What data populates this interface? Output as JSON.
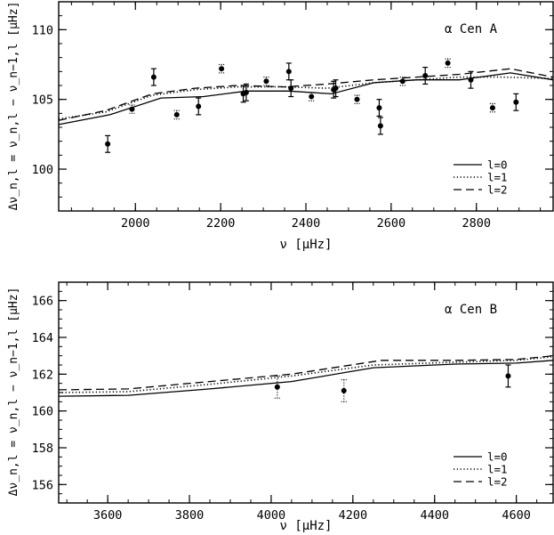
{
  "chart_data": [
    {
      "type": "line",
      "label": "α Cen A",
      "xlabel": "ν [μHz]",
      "ylabel": "Δν_n,l = ν_n,l − ν_n−1,l [μHz]",
      "xlim": [
        1820,
        2980
      ],
      "ylim": [
        97,
        112
      ],
      "xticks": [
        2000,
        2200,
        2400,
        2600,
        2800
      ],
      "yticks": [
        100,
        105,
        110
      ],
      "xminor": 50,
      "yminor": 1,
      "legend": {
        "position": "bottom-right",
        "entries": [
          "l=0",
          "l=1",
          "l=2"
        ]
      },
      "series": [
        {
          "name": "l=0",
          "style": "solid",
          "x": [
            1820,
            1940,
            2060,
            2160,
            2260,
            2360,
            2460,
            2560,
            2660,
            2760,
            2880,
            2980
          ],
          "y": [
            103.2,
            103.9,
            105.1,
            105.2,
            105.6,
            105.6,
            105.4,
            106.2,
            106.4,
            106.4,
            106.9,
            106.4
          ]
        },
        {
          "name": "l=1",
          "style": "dotted",
          "x": [
            1820,
            1930,
            2040,
            2140,
            2240,
            2350,
            2450,
            2560,
            2660,
            2760,
            2860,
            2980
          ],
          "y": [
            103.6,
            104.1,
            105.3,
            105.7,
            105.9,
            105.9,
            105.8,
            106.2,
            106.4,
            106.6,
            106.6,
            106.5
          ]
        },
        {
          "name": "l=2",
          "style": "dashed",
          "x": [
            1820,
            1930,
            2040,
            2140,
            2240,
            2350,
            2450,
            2560,
            2660,
            2760,
            2880,
            2980
          ],
          "y": [
            103.5,
            104.2,
            105.4,
            105.8,
            106.0,
            105.9,
            106.1,
            106.4,
            106.6,
            106.8,
            107.2,
            106.6
          ]
        }
      ],
      "observations": [
        {
          "l": 0,
          "x": 1935,
          "y": 101.8,
          "err": 0.6
        },
        {
          "l": 0,
          "x": 2043,
          "y": 106.6,
          "err": 0.6
        },
        {
          "l": 0,
          "x": 2148,
          "y": 104.5,
          "err": 0.6
        },
        {
          "l": 0,
          "x": 2253,
          "y": 105.4,
          "err": 0.6
        },
        {
          "l": 0,
          "x": 2360,
          "y": 107.0,
          "err": 0.6
        },
        {
          "l": 0,
          "x": 2465,
          "y": 105.7,
          "err": 0.6
        },
        {
          "l": 0,
          "x": 2572,
          "y": 104.4,
          "err": 0.6
        },
        {
          "l": 0,
          "x": 2680,
          "y": 106.7,
          "err": 0.6
        },
        {
          "l": 0,
          "x": 2787,
          "y": 106.4,
          "err": 0.6
        },
        {
          "l": 0,
          "x": 2893,
          "y": 104.8,
          "err": 0.6
        },
        {
          "l": 1,
          "x": 1992,
          "y": 104.3,
          "err": 0.3
        },
        {
          "l": 1,
          "x": 2097,
          "y": 103.9,
          "err": 0.3
        },
        {
          "l": 1,
          "x": 2202,
          "y": 107.2,
          "err": 0.3
        },
        {
          "l": 1,
          "x": 2307,
          "y": 106.3,
          "err": 0.3
        },
        {
          "l": 1,
          "x": 2413,
          "y": 105.2,
          "err": 0.3
        },
        {
          "l": 1,
          "x": 2520,
          "y": 105.0,
          "err": 0.3
        },
        {
          "l": 1,
          "x": 2627,
          "y": 106.3,
          "err": 0.3
        },
        {
          "l": 1,
          "x": 2733,
          "y": 107.6,
          "err": 0.3
        },
        {
          "l": 1,
          "x": 2838,
          "y": 104.4,
          "err": 0.3
        },
        {
          "l": 2,
          "x": 2260,
          "y": 105.5,
          "err": 0.6
        },
        {
          "l": 2,
          "x": 2365,
          "y": 105.8,
          "err": 0.6
        },
        {
          "l": 2,
          "x": 2470,
          "y": 105.8,
          "err": 0.6
        },
        {
          "l": 2,
          "x": 2575,
          "y": 103.1,
          "err": 0.6
        }
      ]
    },
    {
      "type": "line",
      "label": "α Cen B",
      "xlabel": "ν [μHz]",
      "ylabel": "Δν_n,l = ν_n,l − ν_n−1,l [μHz]",
      "xlim": [
        3480,
        4690
      ],
      "ylim": [
        155,
        167
      ],
      "xticks": [
        3600,
        3800,
        4000,
        4200,
        4400,
        4600
      ],
      "yticks": [
        156,
        158,
        160,
        162,
        164,
        166
      ],
      "xminor": 50,
      "yminor": 0.5,
      "legend": {
        "position": "bottom-right",
        "entries": [
          "l=0",
          "l=1",
          "l=2"
        ]
      },
      "series": [
        {
          "name": "l=0",
          "style": "solid",
          "x": [
            3480,
            3650,
            3850,
            4050,
            4250,
            4450,
            4600,
            4690
          ],
          "y": [
            160.8,
            160.85,
            161.2,
            161.6,
            162.35,
            162.55,
            162.6,
            162.75
          ]
        },
        {
          "name": "l=1",
          "style": "dotted",
          "x": [
            3480,
            3650,
            3850,
            4050,
            4250,
            4450,
            4600,
            4690
          ],
          "y": [
            161.0,
            161.05,
            161.45,
            161.9,
            162.5,
            162.65,
            162.75,
            162.95
          ]
        },
        {
          "name": "l=2",
          "style": "dashed",
          "x": [
            3480,
            3650,
            3850,
            4050,
            4270,
            4450,
            4600,
            4690
          ],
          "y": [
            161.15,
            161.2,
            161.6,
            162.0,
            162.75,
            162.75,
            162.8,
            163.0
          ]
        }
      ],
      "observations": [
        {
          "l": 1,
          "x": 4015,
          "y": 161.3,
          "err": 0.6
        },
        {
          "l": 1,
          "x": 4178,
          "y": 161.1,
          "err": 0.6
        },
        {
          "l": 0,
          "x": 4580,
          "y": 161.9,
          "err": 0.6
        }
      ]
    }
  ]
}
